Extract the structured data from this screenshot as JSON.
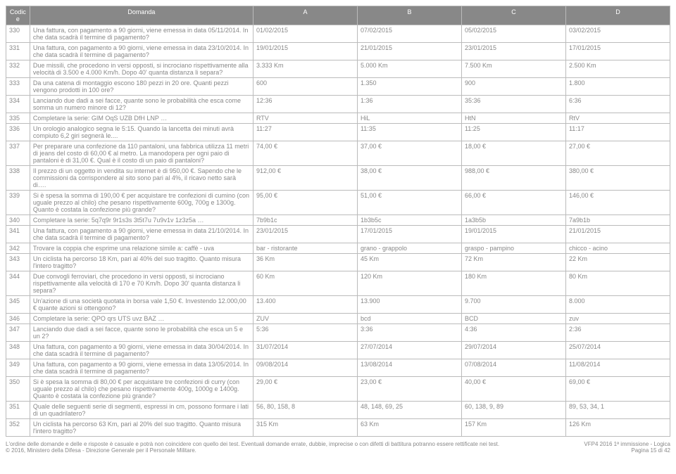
{
  "headers": [
    "Codice",
    "Domanda",
    "A",
    "B",
    "C",
    "D"
  ],
  "rows": [
    [
      "330",
      "Una fattura, con pagamento a 90 giorni, viene emessa in data 05/11/2014. In che data scadrà il termine di pagamento?",
      "01/02/2015",
      "07/02/2015",
      "05/02/2015",
      "03/02/2015"
    ],
    [
      "331",
      "Una fattura, con pagamento a 90 giorni, viene emessa in data 23/10/2014. In che data scadrà il termine di pagamento?",
      "19/01/2015",
      "21/01/2015",
      "23/01/2015",
      "17/01/2015"
    ],
    [
      "332",
      "Due missili, che procedono in versi opposti, si incrociano rispettivamente alla velocità di 3.500 e 4.000 Km/h. Dopo 40' quanta distanza li separa?",
      "3.333 Km",
      "5.000 Km",
      "7.500 Km",
      "2.500 Km"
    ],
    [
      "333",
      "Da una catena di montaggio escono 180 pezzi in 20 ore. Quanti pezzi vengono prodotti in 100 ore?",
      "600",
      "1.350",
      "900",
      "1.800"
    ],
    [
      "334",
      "Lanciando due dadi a sei facce, quante sono le probabilità che esca come somma un numero minore di 12?",
      "12:36",
      "1:36",
      "35:36",
      "6:36"
    ],
    [
      "335",
      "Completare la serie: GIM OqS UZB DfH LNP …",
      "RTV",
      "HiL",
      "HtN",
      "RtV"
    ],
    [
      "336",
      "Un orologio analogico segna le 5:15. Quando la lancetta dei minuti avrà compiuto 6,2 giri segnerà le....",
      "11:27",
      "11:35",
      "11:25",
      "11:17"
    ],
    [
      "337",
      "Per preparare una confezione da 110 pantaloni, una fabbrica utilizza 11 metri di jeans del costo di 60,00 € al metro. La manodopera per ogni paio di pantaloni è di 31,00 €. Qual è il costo di un paio di pantaloni?",
      "74,00 €",
      "37,00 €",
      "18,00 €",
      "27,00 €"
    ],
    [
      "338",
      "Il prezzo di un oggetto in vendita su internet è di 950,00 €. Sapendo che le commissioni da corrispondere al sito sono pari al 4%, il ricavo netto sarà di….",
      "912,00 €",
      "38,00 €",
      "988,00 €",
      "380,00 €"
    ],
    [
      "339",
      "Si è spesa la somma di 190,00 € per acquistare tre confezioni di cumino (con uguale prezzo al chilo) che pesano rispettivamente 600g, 700g e 1300g. Quanto è costata la confezione più grande?",
      "95,00 €",
      "51,00 €",
      "66,00 €",
      "146,00 €"
    ],
    [
      "340",
      "Completare la serie: 5q7q9r 9r1s3s 3t5t7u 7u9v1v 1z3z5a …",
      "7b9b1c",
      "1b3b5c",
      "1a3b5b",
      "7a9b1b"
    ],
    [
      "341",
      "Una fattura, con pagamento a 90 giorni, viene emessa in data 21/10/2014. In che data scadrà il termine di pagamento?",
      "23/01/2015",
      "17/01/2015",
      "19/01/2015",
      "21/01/2015"
    ],
    [
      "342",
      "Trovare la coppia che esprime una relazione simile a: caffè - uva",
      "bar - ristorante",
      "grano - grappolo",
      "graspo - pampino",
      "chicco - acino"
    ],
    [
      "343",
      "Un ciclista ha percorso 18 Km, pari al 40% del suo tragitto. Quanto misura l'intero tragitto?",
      "36 Km",
      "45 Km",
      "72 Km",
      "22 Km"
    ],
    [
      "344",
      "Due convogli ferroviari, che procedono in versi opposti, si incrociano rispettivamente alla velocità di 170 e 70 Km/h. Dopo 30' quanta distanza li separa?",
      "60 Km",
      "120 Km",
      "180 Km",
      "80 Km"
    ],
    [
      "345",
      "Un'azione di una società quotata in borsa vale 1,50 €. Investendo 12.000,00 € quante azioni si ottengono?",
      "13.400",
      "13.900",
      "9.700",
      "8.000"
    ],
    [
      "346",
      "Completare la serie: QPO qrs UTS uvz BAZ …",
      "ZUV",
      "bcd",
      "BCD",
      "zuv"
    ],
    [
      "347",
      "Lanciando due dadi a sei facce, quante sono le probabilità che esca un 5 e un 2?",
      "5:36",
      "3:36",
      "4:36",
      "2:36"
    ],
    [
      "348",
      "Una fattura, con pagamento a 90 giorni, viene emessa in data 30/04/2014. In che data scadrà il termine di pagamento?",
      "31/07/2014",
      "27/07/2014",
      "29/07/2014",
      "25/07/2014"
    ],
    [
      "349",
      "Una fattura, con pagamento a 90 giorni, viene emessa in data 13/05/2014. In che data scadrà il termine di pagamento?",
      "09/08/2014",
      "13/08/2014",
      "07/08/2014",
      "11/08/2014"
    ],
    [
      "350",
      "Si è spesa la somma di 80,00 € per acquistare tre confezioni di curry (con uguale prezzo al chilo) che pesano rispettivamente 400g, 1000g e 1400g. Quanto è costata la confezione più grande?",
      "29,00 €",
      "23,00 €",
      "40,00 €",
      "69,00 €"
    ],
    [
      "351",
      "Quale delle seguenti serie di segmenti, espressi in cm, possono formare i lati di un quadrilatero?",
      "56, 80, 158, 8",
      "48, 148, 69, 25",
      "60, 138, 9, 89",
      "89, 53, 34, 1"
    ],
    [
      "352",
      "Un ciclista ha percorso 63 Km, pari al 20% del suo tragitto. Quanto misura l'intero tragitto?",
      "315 Km",
      "63 Km",
      "157 Km",
      "126 Km"
    ]
  ],
  "footer_left": "L'ordine delle domande e delle e risposte è casuale e potrà non coincidere con quello dei test. Eventuali domande errate, dubbie, imprecise o con difetti di battitura potranno essere rettificate nei test.\n© 2016, Ministero della Difesa - Direzione Generale per il Personale Militare.",
  "footer_right": "VFP4 2016 1ª immissione - Logica\nPagina 15 di 42"
}
